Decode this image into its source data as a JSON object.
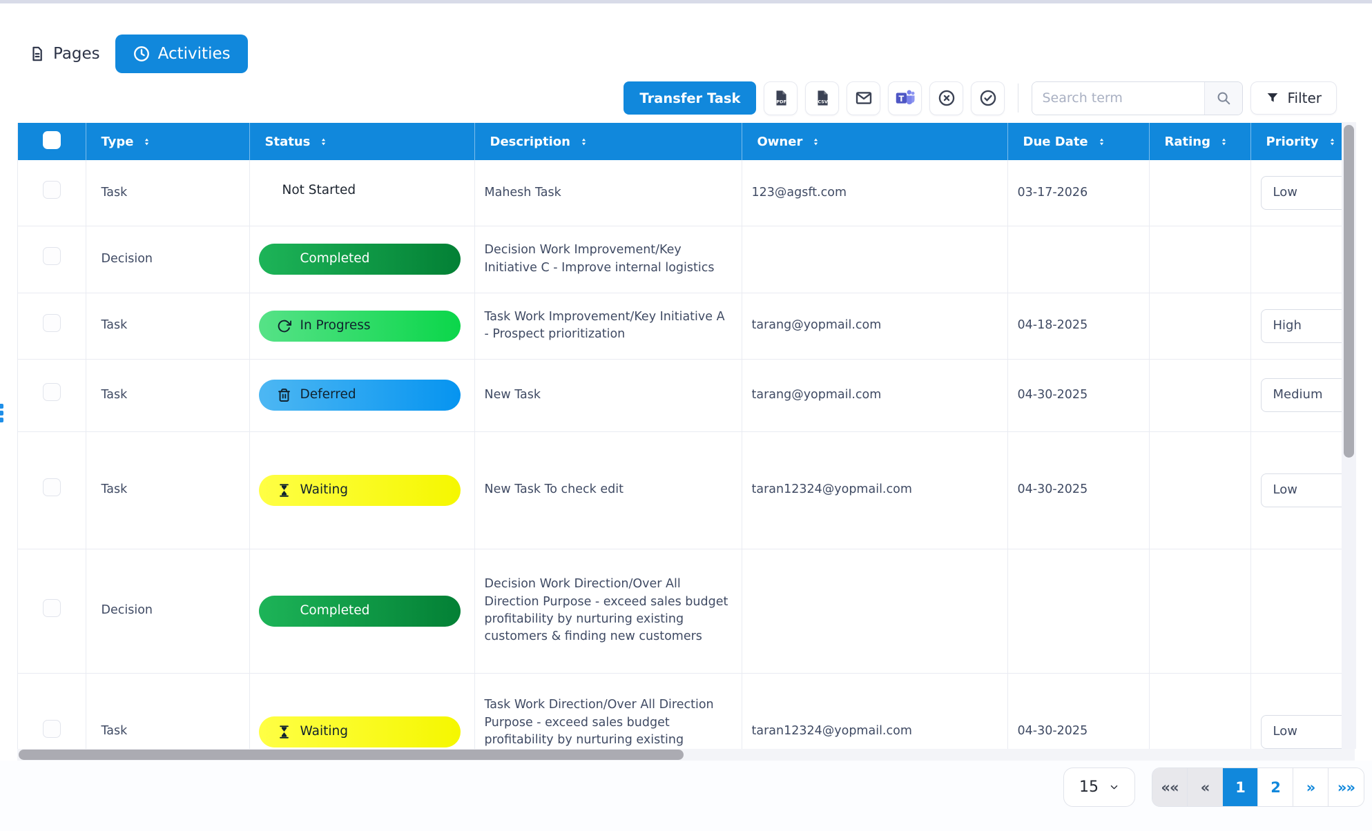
{
  "page": {
    "tabs": [
      {
        "label": "Pages",
        "icon": "document-icon",
        "active": false
      },
      {
        "label": "Activities",
        "icon": "clock-icon",
        "active": true
      }
    ],
    "toolbar": {
      "transfer_task_label": "Transfer Task",
      "icon_buttons": [
        {
          "name": "export-pdf",
          "icon": "file-pdf-icon"
        },
        {
          "name": "export-csv",
          "icon": "file-csv-icon"
        },
        {
          "name": "send-email",
          "icon": "envelope-icon"
        },
        {
          "name": "teams",
          "icon": "teams-icon"
        },
        {
          "name": "cancel-task",
          "icon": "circle-x-icon"
        },
        {
          "name": "complete-task",
          "icon": "circle-check-icon"
        }
      ],
      "search_placeholder": "Search term",
      "filter_label": "Filter"
    },
    "table": {
      "columns": [
        {
          "key": "select",
          "label": "",
          "sortable": false
        },
        {
          "key": "type",
          "label": "Type",
          "sortable": true
        },
        {
          "key": "status",
          "label": "Status",
          "sortable": true
        },
        {
          "key": "description",
          "label": "Description",
          "sortable": true
        },
        {
          "key": "owner",
          "label": "Owner",
          "sortable": true
        },
        {
          "key": "due-date",
          "label": "Due Date",
          "sortable": true
        },
        {
          "key": "rating",
          "label": "Rating",
          "sortable": true
        },
        {
          "key": "priority",
          "label": "Priority",
          "sortable": true
        }
      ],
      "rows": [
        {
          "type": "Task",
          "status": {
            "label": "Not Started",
            "variant": "plain",
            "icon": "check-circle-icon"
          },
          "description": "Mahesh Task",
          "owner": "123@agsft.com",
          "due_date": "03-17-2026",
          "rating": "",
          "priority": "Low"
        },
        {
          "type": "Decision",
          "status": {
            "label": "Completed",
            "variant": "completed",
            "icon": "check-circle-icon"
          },
          "description": "Decision Work Improvement/Key Initiative C - Improve internal logistics",
          "owner": "",
          "due_date": "",
          "rating": "",
          "priority": ""
        },
        {
          "type": "Task",
          "status": {
            "label": "In Progress",
            "variant": "in-progress",
            "icon": "refresh-icon"
          },
          "description": "Task Work Improvement/Key Initiative A - Prospect prioritization",
          "owner": "tarang@yopmail.com",
          "due_date": "04-18-2025",
          "rating": "",
          "priority": "High"
        },
        {
          "type": "Task",
          "status": {
            "label": "Deferred",
            "variant": "deferred",
            "icon": "trash-icon"
          },
          "description": "New Task",
          "owner": "tarang@yopmail.com",
          "due_date": "04-30-2025",
          "rating": "",
          "priority": "Medium"
        },
        {
          "type": "Task",
          "status": {
            "label": "Waiting",
            "variant": "waiting",
            "icon": "hourglass-icon"
          },
          "description": "New Task To check edit",
          "owner": "taran12324@yopmail.com",
          "due_date": "04-30-2025",
          "rating": "",
          "priority": "Low"
        },
        {
          "type": "Decision",
          "status": {
            "label": "Completed",
            "variant": "completed",
            "icon": "check-circle-icon"
          },
          "description": "Decision Work Direction/Over All Direction Purpose - exceed sales budget profitability by nurturing existing customers & finding new customers",
          "owner": "",
          "due_date": "",
          "rating": "",
          "priority": ""
        },
        {
          "type": "Task",
          "status": {
            "label": "Waiting",
            "variant": "waiting",
            "icon": "hourglass-icon"
          },
          "description": "Task Work Direction/Over All Direction Purpose - exceed sales budget profitability by nurturing existing customers & finding new customers",
          "owner": "taran12324@yopmail.com",
          "due_date": "04-30-2025",
          "rating": "",
          "priority": "Low"
        }
      ]
    },
    "pagination": {
      "page_size": "15",
      "buttons": [
        {
          "name": "first-page",
          "label": "««",
          "state": "disabled"
        },
        {
          "name": "prev-page",
          "label": "«",
          "state": "disabled"
        },
        {
          "name": "page-1",
          "label": "1",
          "state": "active"
        },
        {
          "name": "page-2",
          "label": "2",
          "state": "normal"
        },
        {
          "name": "next-page",
          "label": "»",
          "state": "normal"
        },
        {
          "name": "last-page",
          "label": "»»",
          "state": "normal"
        }
      ]
    },
    "colors": {
      "accent": "#1188dc",
      "header_bg": "#1188dc",
      "status_completed": [
        "#1db458",
        "#038035"
      ],
      "status_in_progress": [
        "#56e287",
        "#0bd64a"
      ],
      "status_deferred": [
        "#4db7f3",
        "#0694f0"
      ],
      "status_waiting": [
        "#ffff45",
        "#f5f700"
      ],
      "teams_purple": "#4e56c4"
    }
  }
}
